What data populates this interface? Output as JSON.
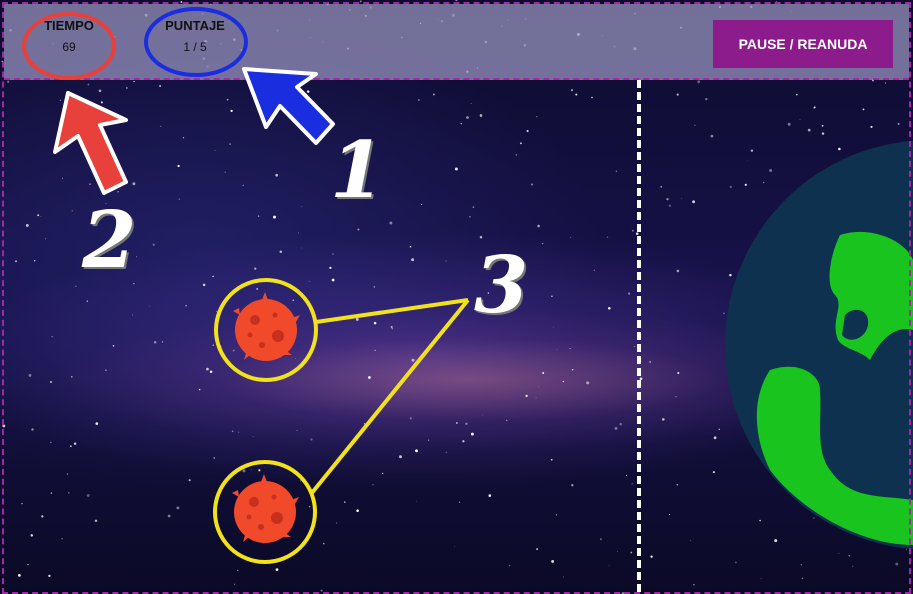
{
  "hud": {
    "time_label": "TIEMPO",
    "time_value": "69",
    "score_label": "PUNTAJE",
    "score_value": "1 / 5",
    "pause_label": "PAUSE / REANUDA"
  },
  "annotations": {
    "label_1": "1",
    "label_2": "2",
    "label_3": "3"
  },
  "colors": {
    "hud_background": "#9691be",
    "pause_button": "#8c1c8c",
    "frame_border": "#a12aa0",
    "earth_ocean": "#0f3150",
    "earth_land": "#19c41f",
    "asteroid": "#f04a2a",
    "annotation_time": "#e8403a",
    "annotation_score": "#1a2ee0",
    "annotation_asteroids": "#f2e21c"
  },
  "icons": [
    "asteroid-icon",
    "earth-icon",
    "arrow-annotation-icon"
  ]
}
